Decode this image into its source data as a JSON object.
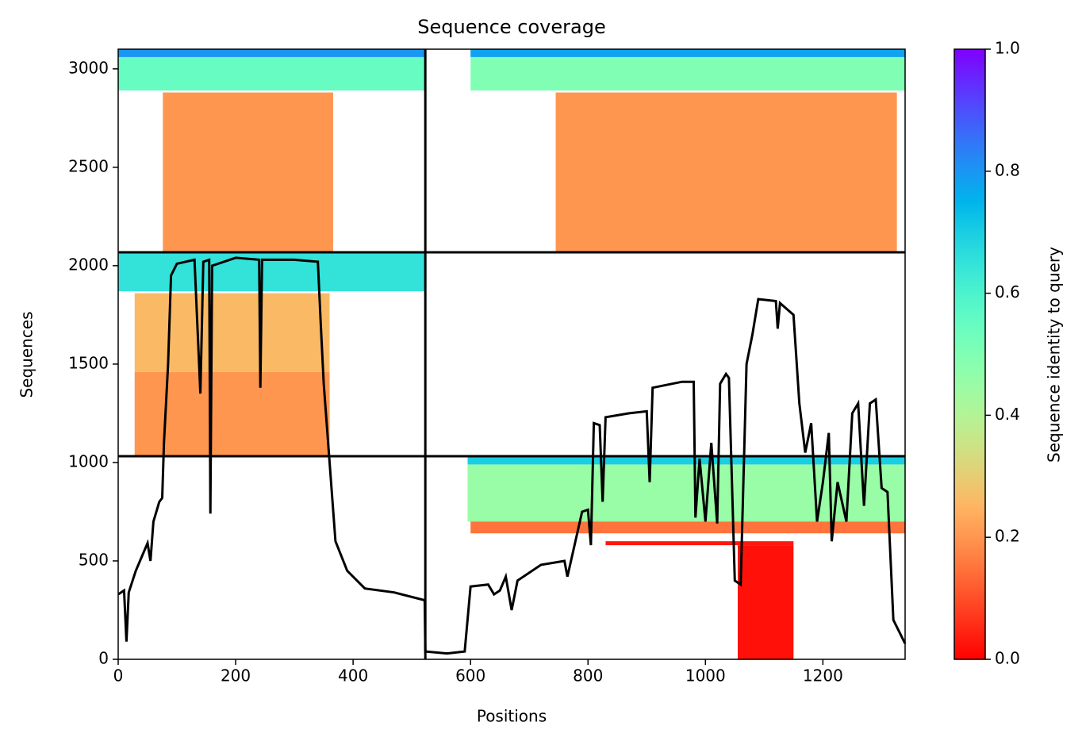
{
  "chart_data": {
    "type": "coverage",
    "title": "Sequence coverage",
    "xlabel": "Positions",
    "ylabel": "Sequences",
    "xlim": [
      0,
      1340
    ],
    "xticks": [
      0,
      200,
      400,
      600,
      800,
      1000,
      1200
    ],
    "ylim": [
      0,
      3100
    ],
    "yticks": [
      0,
      500,
      1000,
      1500,
      2000,
      2500,
      3000
    ],
    "blocks": [
      {
        "x": [
          0,
          522
        ],
        "y": [
          2890,
          3060
        ],
        "identity": 0.55
      },
      {
        "x": [
          0,
          522
        ],
        "y": [
          3060,
          3100
        ],
        "identity": 0.8
      },
      {
        "x": [
          600,
          1340
        ],
        "y": [
          2890,
          3060
        ],
        "identity": 0.5
      },
      {
        "x": [
          600,
          1340
        ],
        "y": [
          3060,
          3100
        ],
        "identity": 0.78
      },
      {
        "x": [
          76,
          366
        ],
        "y": [
          2068,
          2880
        ],
        "identity": 0.2
      },
      {
        "x": [
          745,
          1326
        ],
        "y": [
          2068,
          2880
        ],
        "identity": 0.2
      },
      {
        "x": [
          0,
          522
        ],
        "y": [
          1870,
          2068
        ],
        "identity": 0.65
      },
      {
        "x": [
          28,
          360
        ],
        "y": [
          1460,
          1860
        ],
        "identity": 0.26
      },
      {
        "x": [
          28,
          360
        ],
        "y": [
          1032,
          1460
        ],
        "identity": 0.2
      },
      {
        "x": [
          595,
          1340
        ],
        "y": [
          700,
          990
        ],
        "identity": 0.45
      },
      {
        "x": [
          595,
          1340
        ],
        "y": [
          990,
          1032
        ],
        "identity": 0.7
      },
      {
        "x": [
          600,
          1340
        ],
        "y": [
          640,
          700
        ],
        "identity": 0.15
      },
      {
        "x": [
          830,
          1150
        ],
        "y": [
          580,
          600
        ],
        "identity": 0.03
      },
      {
        "x": [
          1055,
          1150
        ],
        "y": [
          0,
          580
        ],
        "identity": 0.02
      }
    ],
    "line": {
      "color": "#000000",
      "x": [
        0,
        10,
        14,
        18,
        30,
        40,
        50,
        55,
        60,
        70,
        75,
        78,
        85,
        90,
        100,
        130,
        140,
        145,
        155,
        157,
        160,
        200,
        240,
        242,
        245,
        300,
        340,
        345,
        350,
        360,
        370,
        390,
        420,
        470,
        522,
        523,
        560,
        590,
        600,
        630,
        640,
        650,
        660,
        670,
        680,
        720,
        760,
        765,
        790,
        800,
        805,
        810,
        820,
        825,
        830,
        870,
        900,
        905,
        910,
        960,
        980,
        983,
        990,
        1000,
        1010,
        1020,
        1025,
        1035,
        1040,
        1050,
        1060,
        1070,
        1080,
        1090,
        1120,
        1123,
        1127,
        1150,
        1160,
        1170,
        1180,
        1190,
        1200,
        1210,
        1215,
        1225,
        1240,
        1250,
        1260,
        1270,
        1280,
        1290,
        1300,
        1310,
        1320,
        1340
      ],
      "values": [
        330,
        350,
        90,
        340,
        450,
        520,
        590,
        500,
        700,
        800,
        820,
        1100,
        1500,
        1950,
        2010,
        2030,
        1350,
        2020,
        2030,
        740,
        2000,
        2040,
        2030,
        1380,
        2030,
        2030,
        2020,
        1700,
        1400,
        1000,
        600,
        450,
        360,
        340,
        300,
        40,
        30,
        40,
        370,
        380,
        330,
        350,
        420,
        250,
        400,
        480,
        500,
        420,
        750,
        760,
        580,
        1200,
        1190,
        800,
        1230,
        1250,
        1260,
        900,
        1380,
        1410,
        1410,
        720,
        1020,
        700,
        1100,
        690,
        1400,
        1450,
        1430,
        400,
        380,
        1500,
        1650,
        1830,
        1820,
        1680,
        1810,
        1750,
        1300,
        1050,
        1200,
        700,
        900,
        1150,
        600,
        900,
        700,
        1250,
        1300,
        780,
        1300,
        1320,
        870,
        850,
        200,
        80
      ]
    },
    "dividers": {
      "x": [
        523
      ],
      "y": [
        1032,
        2068
      ]
    },
    "colorbar": {
      "label": "Sequence identity to query",
      "lim": [
        0,
        1
      ],
      "ticks": [
        {
          "value": 0,
          "label": "0.0"
        },
        {
          "value": 0.2,
          "label": "0.2"
        },
        {
          "value": 0.4,
          "label": "0.4"
        },
        {
          "value": 0.6,
          "label": "0.6"
        },
        {
          "value": 0.8,
          "label": "0.8"
        },
        {
          "value": 1,
          "label": "1.0"
        }
      ]
    }
  }
}
